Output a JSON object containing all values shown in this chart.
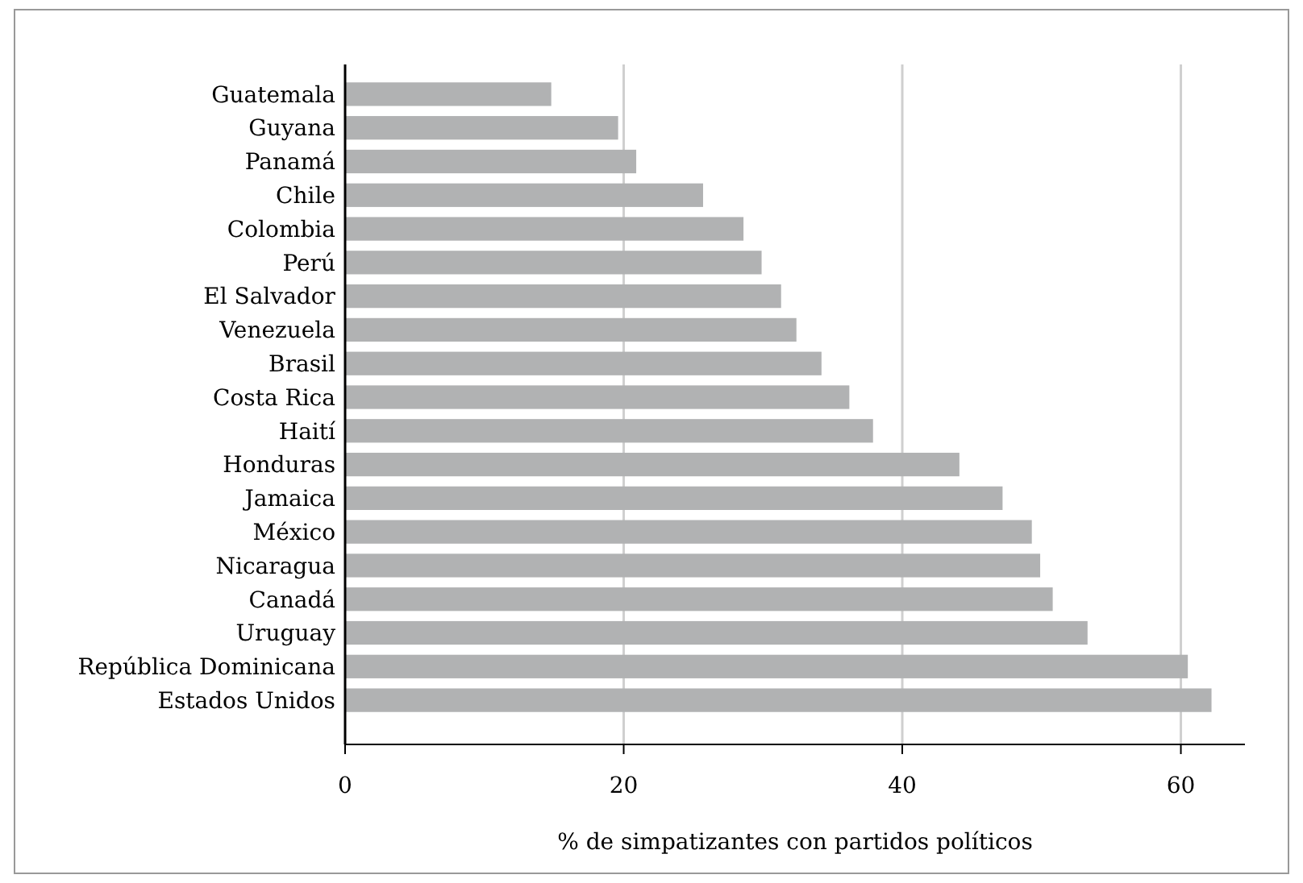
{
  "chart_data": {
    "type": "bar",
    "orientation": "horizontal",
    "xlabel": "% de simpatizantes con partidos políticos",
    "categories": [
      "Guatemala",
      "Guyana",
      "Panamá",
      "Chile",
      "Colombia",
      "Perú",
      "El Salvador",
      "Venezuela",
      "Brasil",
      "Costa Rica",
      "Haití",
      "Honduras",
      "Jamaica",
      "México",
      "Nicaragua",
      "Canadá",
      "Uruguay",
      "República Dominicana",
      "Estados Unidos"
    ],
    "values": [
      14.8,
      19.6,
      20.9,
      25.7,
      28.6,
      29.9,
      31.3,
      32.4,
      34.2,
      36.2,
      37.9,
      44.1,
      47.2,
      49.3,
      49.9,
      50.8,
      53.3,
      60.5,
      62.2
    ],
    "color": "#b1b2b3",
    "xlim": [
      0,
      64.6
    ],
    "xticks": [
      0,
      20,
      40,
      60
    ],
    "grid": "x"
  }
}
